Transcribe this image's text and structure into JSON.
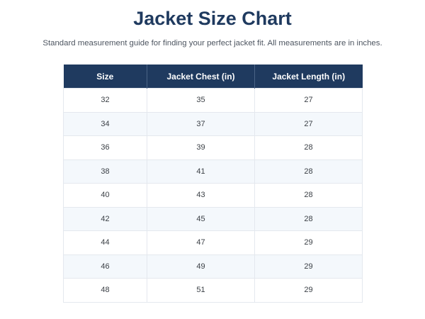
{
  "title": "Jacket Size Chart",
  "subtitle": "Standard measurement guide for finding your perfect jacket fit. All measurements are in inches.",
  "table": {
    "headers": [
      "Size",
      "Jacket Chest (in)",
      "Jacket Length (in)"
    ],
    "rows": [
      [
        "32",
        "35",
        "27"
      ],
      [
        "34",
        "37",
        "27"
      ],
      [
        "36",
        "39",
        "28"
      ],
      [
        "38",
        "41",
        "28"
      ],
      [
        "40",
        "43",
        "28"
      ],
      [
        "42",
        "45",
        "28"
      ],
      [
        "44",
        "47",
        "29"
      ],
      [
        "46",
        "49",
        "29"
      ],
      [
        "48",
        "51",
        "29"
      ]
    ]
  },
  "colors": {
    "header_bg": "#1f3a5f",
    "title": "#1f3a5f",
    "alt_row": "#f4f8fc"
  }
}
